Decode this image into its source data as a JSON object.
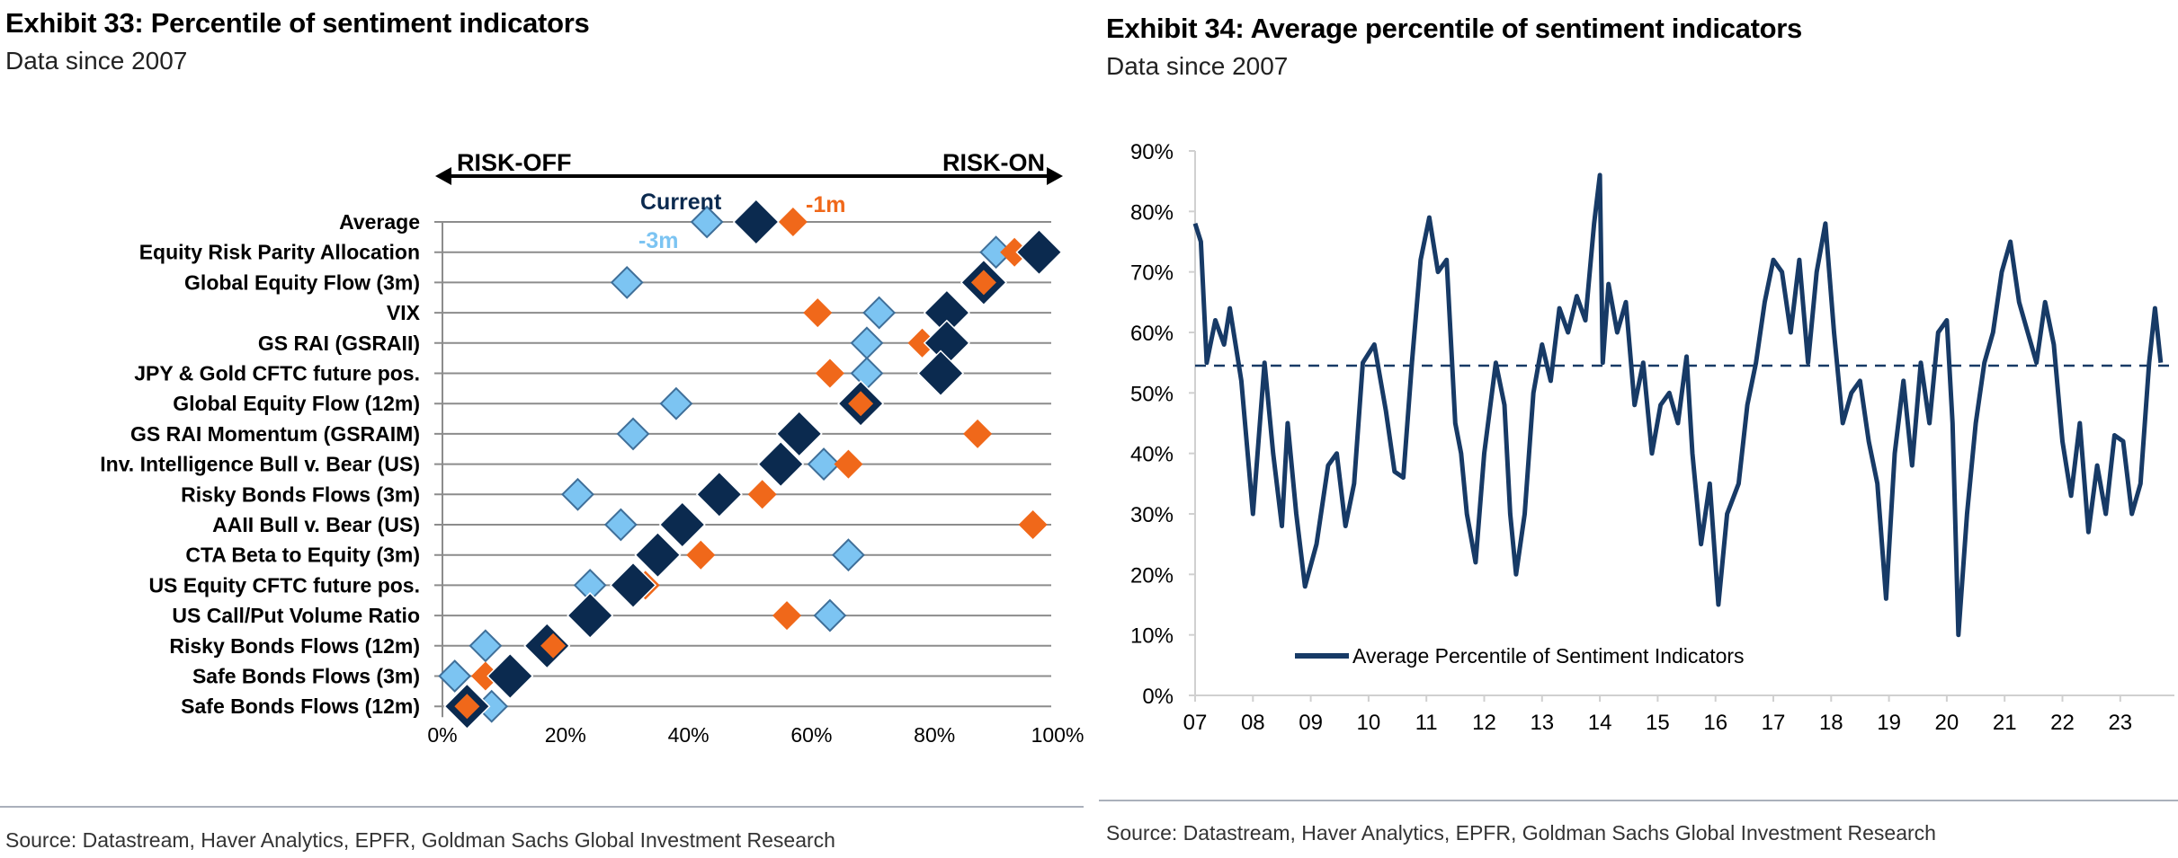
{
  "left": {
    "title": "Exhibit 33: Percentile of sentiment indicators",
    "subtitle": "Data since 2007",
    "source": "Source: Datastream, Haver Analytics, EPFR, Goldman Sachs Global Investment Research"
  },
  "right": {
    "title": "Exhibit 34: Average percentile of sentiment indicators",
    "subtitle": "Data since 2007",
    "source": "Source: Datastream, Haver Analytics, EPFR, Goldman Sachs Global Investment Research"
  },
  "chart_data": [
    {
      "type": "scatter",
      "arrow_left_label": "RISK-OFF",
      "arrow_right_label": "RISK-ON",
      "xlim": [
        0,
        100
      ],
      "x_tick_labels": [
        "0%",
        "20%",
        "40%",
        "60%",
        "80%",
        "100%"
      ],
      "categories": [
        "Average",
        "Equity Risk Parity Allocation",
        "Global Equity Flow (3m)",
        "VIX",
        "GS RAI (GSRAII)",
        "JPY & Gold CFTC future pos.",
        "Global Equity Flow (12m)",
        "GS RAI Momentum (GSRAIM)",
        "Inv. Intelligence Bull v. Bear (US)",
        "Risky Bonds Flows (3m)",
        "AAII Bull v. Bear (US)",
        "CTA Beta to Equity (3m)",
        "US Equity CFTC future pos.",
        "US Call/Put Volume Ratio",
        "Risky Bonds Flows (12m)",
        "Safe Bonds Flows (3m)",
        "Safe Bonds Flows (12m)"
      ],
      "series": [
        {
          "name": "-3m",
          "color": "#7cc4f2",
          "values": [
            43,
            90,
            30,
            71,
            69,
            69,
            38,
            31,
            62,
            22,
            29,
            66,
            24,
            63,
            7,
            2,
            8
          ]
        },
        {
          "name": "-1m",
          "color": "#f0681a",
          "values": [
            57,
            93,
            88,
            61,
            78,
            63,
            68,
            87,
            66,
            52,
            96,
            42,
            33,
            56,
            18,
            7,
            4
          ]
        },
        {
          "name": "Current",
          "color": "#0b2a4f",
          "values": [
            51,
            97,
            88,
            82,
            82,
            81,
            68,
            58,
            55,
            45,
            39,
            35,
            31,
            24,
            17,
            11,
            4
          ]
        }
      ],
      "grid": "horizontal"
    },
    {
      "type": "line",
      "ylim": [
        0,
        90
      ],
      "y_tick_labels": [
        "0%",
        "10%",
        "20%",
        "30%",
        "40%",
        "50%",
        "60%",
        "70%",
        "80%",
        "90%"
      ],
      "x_tick_labels": [
        "07",
        "08",
        "09",
        "10",
        "11",
        "12",
        "13",
        "14",
        "15",
        "16",
        "17",
        "18",
        "19",
        "20",
        "21",
        "22",
        "23"
      ],
      "series": [
        {
          "name": "Average Percentile of Sentiment Indicators",
          "color": "#173a66",
          "x": [
            2007.0,
            2007.1,
            2007.2,
            2007.35,
            2007.5,
            2007.6,
            2007.8,
            2008.0,
            2008.2,
            2008.35,
            2008.5,
            2008.6,
            2008.75,
            2008.9,
            2009.1,
            2009.3,
            2009.45,
            2009.6,
            2009.75,
            2009.9,
            2010.1,
            2010.3,
            2010.45,
            2010.6,
            2010.75,
            2010.9,
            2011.05,
            2011.2,
            2011.35,
            2011.5,
            2011.6,
            2011.7,
            2011.85,
            2012.0,
            2012.2,
            2012.35,
            2012.45,
            2012.55,
            2012.7,
            2012.85,
            2013.0,
            2013.15,
            2013.3,
            2013.45,
            2013.6,
            2013.75,
            2013.9,
            2014.0,
            2014.05,
            2014.15,
            2014.3,
            2014.45,
            2014.6,
            2014.75,
            2014.9,
            2015.05,
            2015.2,
            2015.35,
            2015.5,
            2015.6,
            2015.75,
            2015.9,
            2016.05,
            2016.2,
            2016.4,
            2016.55,
            2016.7,
            2016.85,
            2017.0,
            2017.15,
            2017.3,
            2017.45,
            2017.6,
            2017.75,
            2017.9,
            2018.05,
            2018.2,
            2018.35,
            2018.5,
            2018.65,
            2018.8,
            2018.95,
            2019.1,
            2019.25,
            2019.4,
            2019.55,
            2019.7,
            2019.85,
            2020.0,
            2020.1,
            2020.2,
            2020.35,
            2020.5,
            2020.65,
            2020.8,
            2020.95,
            2021.1,
            2021.25,
            2021.4,
            2021.55,
            2021.7,
            2021.85,
            2022.0,
            2022.15,
            2022.3,
            2022.45,
            2022.6,
            2022.75,
            2022.9,
            2023.05,
            2023.2,
            2023.35,
            2023.5,
            2023.6,
            2023.7
          ],
          "y": [
            78,
            75,
            55,
            62,
            58,
            64,
            52,
            30,
            55,
            40,
            28,
            45,
            30,
            18,
            25,
            38,
            40,
            28,
            35,
            55,
            58,
            47,
            37,
            36,
            55,
            72,
            79,
            70,
            72,
            45,
            40,
            30,
            22,
            40,
            55,
            48,
            30,
            20,
            30,
            50,
            58,
            52,
            64,
            60,
            66,
            62,
            78,
            86,
            55,
            68,
            60,
            65,
            48,
            55,
            40,
            48,
            50,
            45,
            56,
            40,
            25,
            35,
            15,
            30,
            35,
            48,
            55,
            65,
            72,
            70,
            60,
            72,
            55,
            70,
            78,
            60,
            45,
            50,
            52,
            42,
            35,
            16,
            40,
            52,
            38,
            55,
            45,
            60,
            62,
            45,
            10,
            30,
            45,
            55,
            60,
            70,
            75,
            65,
            60,
            55,
            65,
            58,
            42,
            33,
            45,
            27,
            38,
            30,
            43,
            42,
            30,
            35,
            55,
            64,
            55
          ]
        },
        {
          "name": "",
          "style": "dashed",
          "color": "#173a66",
          "value": 54.5
        }
      ],
      "legend": "bottom-left",
      "grid": "none"
    }
  ]
}
